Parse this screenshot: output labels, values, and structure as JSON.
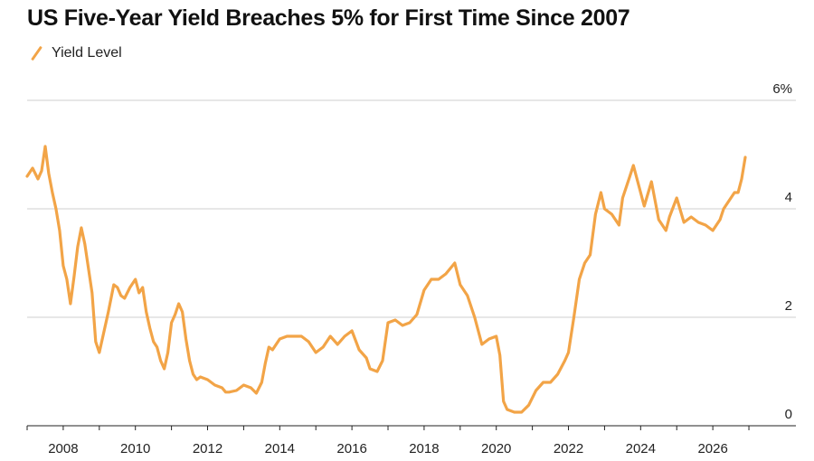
{
  "title": "US Five-Year Yield Breaches 5% for First Time Since 2007",
  "legend": {
    "label": "Yield Level",
    "color": "#f2a447"
  },
  "chart_data": {
    "type": "line",
    "title": "US Five-Year Yield Breaches 5% for First Time Since 2007",
    "xlabel": "",
    "ylabel": "",
    "xlim": [
      2007.0,
      2027.3
    ],
    "ylim": [
      0,
      6
    ],
    "x_ticks": [
      2008,
      2010,
      2012,
      2014,
      2016,
      2018,
      2020,
      2022,
      2024,
      2026
    ],
    "y_ticks": [
      {
        "value": 0,
        "label": "0"
      },
      {
        "value": 2,
        "label": "2"
      },
      {
        "value": 4,
        "label": "4"
      },
      {
        "value": 6,
        "label": "6%"
      }
    ],
    "grid": true,
    "legend_position": "top-left",
    "series": [
      {
        "name": "Yield Level",
        "color": "#f2a447",
        "x": [
          2007.0,
          2007.15,
          2007.3,
          2007.4,
          2007.5,
          2007.6,
          2007.7,
          2007.8,
          2007.9,
          2008.0,
          2008.1,
          2008.2,
          2008.3,
          2008.4,
          2008.5,
          2008.6,
          2008.7,
          2008.8,
          2008.9,
          2009.0,
          2009.1,
          2009.25,
          2009.4,
          2009.5,
          2009.6,
          2009.7,
          2009.85,
          2010.0,
          2010.1,
          2010.2,
          2010.3,
          2010.4,
          2010.5,
          2010.6,
          2010.7,
          2010.8,
          2010.9,
          2011.0,
          2011.1,
          2011.2,
          2011.3,
          2011.4,
          2011.5,
          2011.6,
          2011.7,
          2011.8,
          2012.0,
          2012.2,
          2012.4,
          2012.5,
          2012.6,
          2012.8,
          2013.0,
          2013.2,
          2013.35,
          2013.5,
          2013.6,
          2013.7,
          2013.8,
          2014.0,
          2014.2,
          2014.4,
          2014.6,
          2014.8,
          2015.0,
          2015.2,
          2015.4,
          2015.6,
          2015.8,
          2016.0,
          2016.2,
          2016.4,
          2016.5,
          2016.7,
          2016.85,
          2017.0,
          2017.2,
          2017.4,
          2017.6,
          2017.8,
          2018.0,
          2018.2,
          2018.4,
          2018.6,
          2018.85,
          2019.0,
          2019.2,
          2019.4,
          2019.6,
          2019.8,
          2020.0,
          2020.1,
          2020.2,
          2020.3,
          2020.5,
          2020.7,
          2020.9,
          2021.1,
          2021.3,
          2021.5,
          2021.7,
          2021.9,
          2022.0,
          2022.15,
          2022.3,
          2022.45,
          2022.6,
          2022.75,
          2022.9,
          2023.0,
          2023.2,
          2023.4,
          2023.5,
          2023.7,
          2023.8,
          2024.0,
          2024.1,
          2024.3,
          2024.5,
          2024.7,
          2024.8,
          2025.0,
          2025.2,
          2025.4,
          2025.6,
          2025.8,
          2026.0,
          2026.2,
          2026.3,
          2026.5,
          2026.6,
          2026.7,
          2026.8,
          2026.9
        ],
        "values": [
          4.6,
          4.75,
          4.55,
          4.7,
          5.15,
          4.65,
          4.3,
          4.0,
          3.6,
          2.95,
          2.7,
          2.25,
          2.75,
          3.3,
          3.65,
          3.35,
          2.9,
          2.45,
          1.55,
          1.35,
          1.65,
          2.1,
          2.6,
          2.55,
          2.4,
          2.35,
          2.55,
          2.7,
          2.45,
          2.55,
          2.1,
          1.8,
          1.55,
          1.45,
          1.2,
          1.05,
          1.35,
          1.9,
          2.05,
          2.25,
          2.1,
          1.6,
          1.2,
          0.95,
          0.85,
          0.9,
          0.85,
          0.75,
          0.7,
          0.62,
          0.62,
          0.65,
          0.75,
          0.7,
          0.6,
          0.8,
          1.15,
          1.45,
          1.4,
          1.6,
          1.65,
          1.65,
          1.65,
          1.55,
          1.35,
          1.45,
          1.65,
          1.5,
          1.65,
          1.75,
          1.4,
          1.25,
          1.05,
          1.0,
          1.2,
          1.9,
          1.95,
          1.85,
          1.9,
          2.05,
          2.5,
          2.7,
          2.7,
          2.8,
          3.0,
          2.6,
          2.4,
          2.0,
          1.5,
          1.6,
          1.65,
          1.3,
          0.45,
          0.3,
          0.25,
          0.25,
          0.38,
          0.65,
          0.8,
          0.8,
          0.95,
          1.2,
          1.35,
          2.0,
          2.7,
          3.0,
          3.15,
          3.9,
          4.3,
          4.0,
          3.9,
          3.7,
          4.2,
          4.6,
          4.8,
          4.3,
          4.05,
          4.5,
          3.8,
          3.6,
          3.85,
          4.2,
          3.75,
          3.85,
          3.75,
          3.7,
          3.6,
          3.8,
          4.0,
          4.2,
          4.3,
          4.3,
          4.55,
          4.95
        ]
      }
    ]
  }
}
